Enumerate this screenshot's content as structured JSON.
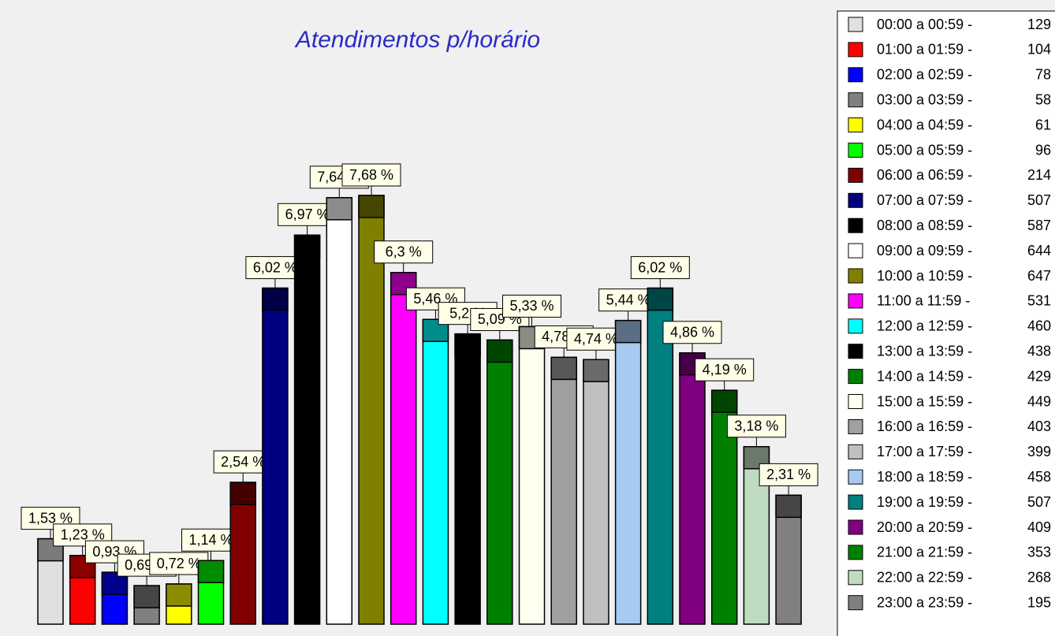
{
  "chart_data": {
    "type": "bar",
    "title": "Atendimentos p/horário",
    "categories": [
      "00:00 a 00:59 -",
      "01:00 a 01:59 -",
      "02:00 a 02:59 -",
      "03:00 a 03:59 -",
      "04:00 a 04:59 -",
      "05:00 a 05:59 -",
      "06:00 a 06:59 -",
      "07:00 a 07:59 -",
      "08:00 a 08:59 -",
      "09:00 a 09:59 -",
      "10:00 a 10:59 -",
      "11:00 a 11:59 -",
      "12:00 a 12:59 -",
      "13:00 a 13:59 -",
      "14:00 a 14:59 -",
      "15:00 a 15:59 -",
      "16:00 a 16:59 -",
      "17:00 a 17:59 -",
      "18:00 a 18:59 -",
      "19:00 a 19:59 -",
      "20:00 a 20:59 -",
      "21:00 a 21:59 -",
      "22:00 a 22:59 -",
      "23:00 a 23:59 -"
    ],
    "counts": [
      129,
      104,
      78,
      58,
      61,
      96,
      214,
      507,
      587,
      644,
      647,
      531,
      460,
      438,
      429,
      449,
      403,
      399,
      458,
      507,
      409,
      353,
      268,
      195
    ],
    "values": [
      1.53,
      1.23,
      0.93,
      0.69,
      0.72,
      1.14,
      2.54,
      6.02,
      6.97,
      7.64,
      7.68,
      6.3,
      5.46,
      5.2,
      5.09,
      5.33,
      4.78,
      4.74,
      5.44,
      6.02,
      4.86,
      4.19,
      3.18,
      2.31
    ],
    "value_labels": [
      "1,53 %",
      "1,23 %",
      "0,93 %",
      "0,69 %",
      "0,72 %",
      "1,14 %",
      "2,54 %",
      "6,02 %",
      "6,97 %",
      "7,64 %",
      "7,68 %",
      "6,3 %",
      "5,46 %",
      "5,2 %",
      "5,09 %",
      "5,33 %",
      "4,78 %",
      "4,74 %",
      "5,44 %",
      "6,02 %",
      "4,86 %",
      "4,19 %",
      "3,18 %",
      "2,31 %"
    ],
    "colors": [
      "#e0e0e0",
      "#ff0000",
      "#0000ff",
      "#808080",
      "#ffff00",
      "#00ff00",
      "#800000",
      "#000080",
      "#000000",
      "#ffffff",
      "#808000",
      "#ff00ff",
      "#00ffff",
      "#000000",
      "#008000",
      "#fffff0",
      "#a0a0a0",
      "#c0c0c0",
      "#a6caf0",
      "#008080",
      "#800080",
      "#008000",
      "#c0dcc0",
      "#808080"
    ],
    "legend": "right"
  }
}
